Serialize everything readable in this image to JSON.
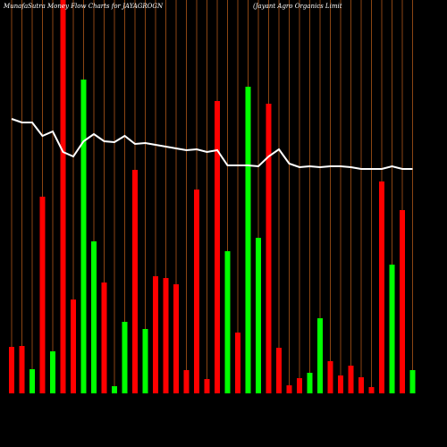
{
  "chart_data": {
    "type": "bar",
    "title": "MunafaSutra Money Flow Charts for JAYAGROGN",
    "subtitle": "(Jayant Agro Organics Limit",
    "values": [
      52,
      53,
      27,
      220,
      47,
      440,
      105,
      351,
      170,
      124,
      8,
      80,
      250,
      72,
      131,
      129,
      122,
      26,
      228,
      16,
      327,
      159,
      68,
      343,
      174,
      324,
      51,
      9,
      17,
      23,
      84,
      36,
      20,
      31,
      18,
      7,
      237,
      144,
      205,
      26
    ],
    "colors": [
      "#ff0000",
      "#ff0000",
      "#00ff00",
      "#ff0000",
      "#00ff00",
      "#ff0000",
      "#ff0000",
      "#00ff00",
      "#00ff00",
      "#ff0000",
      "#00ff00",
      "#00ff00",
      "#ff0000",
      "#00ff00",
      "#ff0000",
      "#ff0000",
      "#ff0000",
      "#ff0000",
      "#ff0000",
      "#ff0000",
      "#ff0000",
      "#00ff00",
      "#ff0000",
      "#00ff00",
      "#00ff00",
      "#ff0000",
      "#ff0000",
      "#ff0000",
      "#ff0000",
      "#00ff00",
      "#00ff00",
      "#ff0000",
      "#ff0000",
      "#ff0000",
      "#ff0000",
      "#ff0000",
      "#ff0000",
      "#00ff00",
      "#ff0000",
      "#00ff00"
    ],
    "line": {
      "color": "#ffffff",
      "values": [
        307,
        303,
        303,
        288,
        293,
        270,
        265,
        282,
        290,
        282,
        281,
        288,
        279,
        280,
        278,
        276,
        274,
        272,
        273,
        270,
        272,
        255,
        255,
        255,
        254,
        265,
        273,
        257,
        253,
        254,
        253,
        254,
        254,
        253,
        251,
        251,
        251,
        254,
        251,
        251
      ]
    },
    "ylim": [
      0,
      440
    ],
    "background": "#000000",
    "category_line_color": "#8b4513"
  }
}
